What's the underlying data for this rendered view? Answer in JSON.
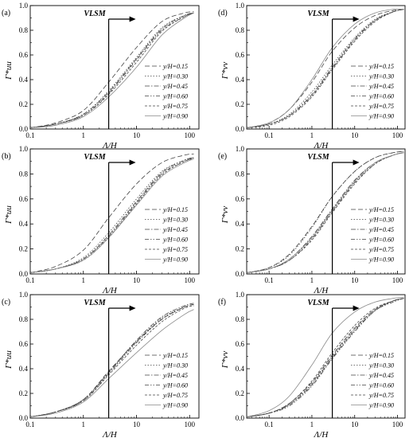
{
  "chart_data": [
    {
      "panel": "(a)",
      "type": "line",
      "xscale": "log",
      "xlim": [
        0.1,
        150
      ],
      "ylim": [
        0,
        1.0
      ],
      "xlabel": "Λ/H",
      "ylabel": "Γ*uu",
      "xticks": [
        "0.1",
        "1",
        "10",
        "100"
      ],
      "yticks": [
        "0.0",
        "0.2",
        "0.4",
        "0.6",
        "0.8",
        "1.0"
      ],
      "annotation": "VLSM",
      "annotation_x": 3,
      "legend_position": "right-middle",
      "series": [
        {
          "name": "y/H=0.15",
          "style": "dash",
          "x": [
            0.1,
            0.3,
            1,
            3,
            10,
            30,
            80,
            120
          ],
          "y": [
            0.01,
            0.05,
            0.15,
            0.38,
            0.66,
            0.87,
            0.94,
            0.95
          ]
        },
        {
          "name": "y/H=0.30",
          "style": "dot",
          "x": [
            0.1,
            0.3,
            1,
            3,
            10,
            30,
            80,
            120
          ],
          "y": [
            0.01,
            0.04,
            0.12,
            0.31,
            0.58,
            0.82,
            0.92,
            0.94
          ]
        },
        {
          "name": "y/H=0.45",
          "style": "dashdot",
          "x": [
            0.1,
            0.3,
            1,
            3,
            10,
            30,
            80,
            120
          ],
          "y": [
            0.01,
            0.04,
            0.12,
            0.3,
            0.57,
            0.81,
            0.92,
            0.94
          ]
        },
        {
          "name": "y/H=0.60",
          "style": "dashdotdot",
          "x": [
            0.1,
            0.3,
            1,
            3,
            10,
            30,
            80,
            120
          ],
          "y": [
            0.01,
            0.04,
            0.11,
            0.29,
            0.56,
            0.8,
            0.91,
            0.94
          ]
        },
        {
          "name": "y/H=0.75",
          "style": "shortdash",
          "x": [
            0.1,
            0.3,
            1,
            3,
            10,
            30,
            80,
            120
          ],
          "y": [
            0.01,
            0.04,
            0.11,
            0.28,
            0.54,
            0.79,
            0.91,
            0.94
          ]
        },
        {
          "name": "y/H=0.90",
          "style": "solid",
          "x": [
            0.1,
            0.3,
            1,
            3,
            10,
            30,
            80,
            120
          ],
          "y": [
            0.01,
            0.03,
            0.1,
            0.26,
            0.5,
            0.76,
            0.9,
            0.94
          ]
        }
      ]
    },
    {
      "panel": "(b)",
      "type": "line",
      "xscale": "log",
      "xlim": [
        0.1,
        150
      ],
      "ylim": [
        0,
        1.0
      ],
      "xlabel": "Λ/H",
      "ylabel": "Γ*uu",
      "xticks": [
        "0.1",
        "1",
        "10",
        "100"
      ],
      "yticks": [
        "0.0",
        "0.2",
        "0.4",
        "0.6",
        "0.8",
        "1.0"
      ],
      "annotation": "VLSM",
      "annotation_x": 3,
      "legend_position": "right-middle",
      "series": [
        {
          "name": "y/H=0.15",
          "style": "dash",
          "x": [
            0.1,
            0.3,
            1,
            3,
            10,
            30,
            80,
            120
          ],
          "y": [
            0.01,
            0.06,
            0.19,
            0.45,
            0.72,
            0.89,
            0.95,
            0.96
          ]
        },
        {
          "name": "y/H=0.30",
          "style": "dot",
          "x": [
            0.1,
            0.3,
            1,
            3,
            10,
            30,
            80,
            120
          ],
          "y": [
            0.01,
            0.04,
            0.13,
            0.33,
            0.6,
            0.82,
            0.91,
            0.93
          ]
        },
        {
          "name": "y/H=0.45",
          "style": "dashdot",
          "x": [
            0.1,
            0.3,
            1,
            3,
            10,
            30,
            80,
            120
          ],
          "y": [
            0.01,
            0.04,
            0.12,
            0.31,
            0.58,
            0.81,
            0.91,
            0.93
          ]
        },
        {
          "name": "y/H=0.60",
          "style": "dashdotdot",
          "x": [
            0.1,
            0.3,
            1,
            3,
            10,
            30,
            80,
            120
          ],
          "y": [
            0.01,
            0.04,
            0.12,
            0.3,
            0.57,
            0.8,
            0.9,
            0.93
          ]
        },
        {
          "name": "y/H=0.75",
          "style": "shortdash",
          "x": [
            0.1,
            0.3,
            1,
            3,
            10,
            30,
            80,
            120
          ],
          "y": [
            0.01,
            0.04,
            0.11,
            0.29,
            0.56,
            0.79,
            0.9,
            0.92
          ]
        },
        {
          "name": "y/H=0.90",
          "style": "solid",
          "x": [
            0.1,
            0.3,
            1,
            3,
            10,
            30,
            80,
            120
          ],
          "y": [
            0.01,
            0.04,
            0.11,
            0.29,
            0.55,
            0.78,
            0.89,
            0.92
          ]
        }
      ]
    },
    {
      "panel": "(c)",
      "type": "line",
      "xscale": "log",
      "xlim": [
        0.1,
        150
      ],
      "ylim": [
        0,
        1.0
      ],
      "xlabel": "Λ/H",
      "ylabel": "Γ*uu",
      "xticks": [
        "0.1",
        "1",
        "10",
        "100"
      ],
      "yticks": [
        "0.0",
        "0.2",
        "0.4",
        "0.6",
        "0.8",
        "1.0"
      ],
      "annotation": "VLSM",
      "annotation_x": 3,
      "legend_position": "right-middle",
      "series": [
        {
          "name": "y/H=0.15",
          "style": "dash",
          "x": [
            0.1,
            0.3,
            1,
            3,
            10,
            30,
            80,
            120
          ],
          "y": [
            0.01,
            0.05,
            0.15,
            0.38,
            0.62,
            0.8,
            0.9,
            0.92
          ]
        },
        {
          "name": "y/H=0.30",
          "style": "dot",
          "x": [
            0.1,
            0.3,
            1,
            3,
            10,
            30,
            80,
            120
          ],
          "y": [
            0.01,
            0.05,
            0.15,
            0.37,
            0.62,
            0.81,
            0.9,
            0.92
          ]
        },
        {
          "name": "y/H=0.45",
          "style": "dashdot",
          "x": [
            0.1,
            0.3,
            1,
            3,
            10,
            30,
            80,
            120
          ],
          "y": [
            0.01,
            0.05,
            0.15,
            0.37,
            0.63,
            0.82,
            0.91,
            0.93
          ]
        },
        {
          "name": "y/H=0.60",
          "style": "dashdotdot",
          "x": [
            0.1,
            0.3,
            1,
            3,
            10,
            30,
            80,
            120
          ],
          "y": [
            0.01,
            0.05,
            0.14,
            0.36,
            0.61,
            0.8,
            0.9,
            0.92
          ]
        },
        {
          "name": "y/H=0.75",
          "style": "shortdash",
          "x": [
            0.1,
            0.3,
            1,
            3,
            10,
            30,
            80,
            120
          ],
          "y": [
            0.01,
            0.05,
            0.14,
            0.35,
            0.59,
            0.78,
            0.89,
            0.91
          ]
        },
        {
          "name": "y/H=0.90",
          "style": "solid",
          "x": [
            0.1,
            0.3,
            1,
            3,
            10,
            30,
            80,
            120
          ],
          "y": [
            0.01,
            0.04,
            0.13,
            0.32,
            0.53,
            0.71,
            0.84,
            0.88
          ]
        }
      ]
    },
    {
      "panel": "(d)",
      "type": "line",
      "xscale": "log",
      "xlim": [
        0.03,
        150
      ],
      "ylim": [
        0,
        1.0
      ],
      "xlabel": "Λ/H",
      "ylabel": "Γ*vv",
      "xticks": [
        "0.1",
        "1",
        "10",
        "100"
      ],
      "yticks": [
        "0.0",
        "0.2",
        "0.4",
        "0.6",
        "0.8",
        "1.0"
      ],
      "annotation": "VLSM",
      "annotation_x": 3,
      "legend_position": "right-middle",
      "series": [
        {
          "name": "y/H=0.15",
          "style": "dash",
          "x": [
            0.03,
            0.1,
            0.3,
            1,
            3,
            10,
            30,
            80,
            140
          ],
          "y": [
            0.01,
            0.05,
            0.16,
            0.38,
            0.63,
            0.82,
            0.92,
            0.96,
            0.97
          ]
        },
        {
          "name": "y/H=0.30",
          "style": "dot",
          "x": [
            0.03,
            0.1,
            0.3,
            1,
            3,
            10,
            30,
            80,
            140
          ],
          "y": [
            0.01,
            0.04,
            0.12,
            0.3,
            0.52,
            0.74,
            0.89,
            0.95,
            0.97
          ]
        },
        {
          "name": "y/H=0.45",
          "style": "dashdot",
          "x": [
            0.03,
            0.1,
            0.3,
            1,
            3,
            10,
            30,
            80,
            140
          ],
          "y": [
            0.01,
            0.04,
            0.11,
            0.28,
            0.5,
            0.73,
            0.88,
            0.95,
            0.97
          ]
        },
        {
          "name": "y/H=0.60",
          "style": "dashdotdot",
          "x": [
            0.03,
            0.1,
            0.3,
            1,
            3,
            10,
            30,
            80,
            140
          ],
          "y": [
            0.01,
            0.04,
            0.11,
            0.27,
            0.49,
            0.72,
            0.88,
            0.95,
            0.97
          ]
        },
        {
          "name": "y/H=0.75",
          "style": "shortdash",
          "x": [
            0.03,
            0.1,
            0.3,
            1,
            3,
            10,
            30,
            80,
            140
          ],
          "y": [
            0.01,
            0.03,
            0.1,
            0.26,
            0.48,
            0.71,
            0.87,
            0.95,
            0.97
          ]
        },
        {
          "name": "y/H=0.90",
          "style": "solid",
          "x": [
            0.03,
            0.1,
            0.3,
            1,
            3,
            10,
            30,
            80,
            140
          ],
          "y": [
            0.01,
            0.05,
            0.16,
            0.4,
            0.66,
            0.85,
            0.94,
            0.97,
            0.97
          ]
        }
      ]
    },
    {
      "panel": "(e)",
      "type": "line",
      "xscale": "log",
      "xlim": [
        0.03,
        150
      ],
      "ylim": [
        0,
        1.0
      ],
      "xlabel": "Λ/H",
      "ylabel": "Γ*vv",
      "xticks": [
        "0.1",
        "1",
        "10",
        "100"
      ],
      "yticks": [
        "0.0",
        "0.2",
        "0.4",
        "0.6",
        "0.8",
        "1.0"
      ],
      "annotation": "VLSM",
      "annotation_x": 3,
      "legend_position": "right-middle",
      "series": [
        {
          "name": "y/H=0.15",
          "style": "dash",
          "x": [
            0.03,
            0.1,
            0.3,
            1,
            3,
            10,
            30,
            80,
            140
          ],
          "y": [
            0.01,
            0.05,
            0.16,
            0.38,
            0.62,
            0.82,
            0.93,
            0.97,
            0.98
          ]
        },
        {
          "name": "y/H=0.30",
          "style": "dot",
          "x": [
            0.03,
            0.1,
            0.3,
            1,
            3,
            10,
            30,
            80,
            140
          ],
          "y": [
            0.01,
            0.05,
            0.15,
            0.37,
            0.62,
            0.82,
            0.93,
            0.97,
            0.98
          ]
        },
        {
          "name": "y/H=0.45",
          "style": "dashdot",
          "x": [
            0.03,
            0.1,
            0.3,
            1,
            3,
            10,
            30,
            80,
            140
          ],
          "y": [
            0.01,
            0.04,
            0.12,
            0.3,
            0.52,
            0.75,
            0.89,
            0.95,
            0.97
          ]
        },
        {
          "name": "y/H=0.60",
          "style": "dashdotdot",
          "x": [
            0.03,
            0.1,
            0.3,
            1,
            3,
            10,
            30,
            80,
            140
          ],
          "y": [
            0.01,
            0.04,
            0.11,
            0.28,
            0.5,
            0.73,
            0.88,
            0.95,
            0.97
          ]
        },
        {
          "name": "y/H=0.75",
          "style": "shortdash",
          "x": [
            0.03,
            0.1,
            0.3,
            1,
            3,
            10,
            30,
            80,
            140
          ],
          "y": [
            0.01,
            0.04,
            0.11,
            0.27,
            0.49,
            0.72,
            0.88,
            0.95,
            0.97
          ]
        },
        {
          "name": "y/H=0.90",
          "style": "solid",
          "x": [
            0.03,
            0.1,
            0.3,
            1,
            3,
            10,
            30,
            80,
            140
          ],
          "y": [
            0.01,
            0.04,
            0.12,
            0.29,
            0.51,
            0.74,
            0.89,
            0.95,
            0.97
          ]
        }
      ]
    },
    {
      "panel": "(f)",
      "type": "line",
      "xscale": "log",
      "xlim": [
        0.03,
        150
      ],
      "ylim": [
        0,
        1.0
      ],
      "xlabel": "Λ/H",
      "ylabel": "Γ*vv",
      "xticks": [
        "0.1",
        "1",
        "10",
        "100"
      ],
      "yticks": [
        "0.0",
        "0.2",
        "0.4",
        "0.6",
        "0.8",
        "1.0"
      ],
      "annotation": "VLSM",
      "annotation_x": 3,
      "legend_position": "right-middle",
      "series": [
        {
          "name": "y/H=0.15",
          "style": "dash",
          "x": [
            0.03,
            0.1,
            0.3,
            1,
            3,
            10,
            30,
            80,
            140
          ],
          "y": [
            0.01,
            0.04,
            0.12,
            0.29,
            0.51,
            0.73,
            0.88,
            0.95,
            0.97
          ]
        },
        {
          "name": "y/H=0.30",
          "style": "dot",
          "x": [
            0.03,
            0.1,
            0.3,
            1,
            3,
            10,
            30,
            80,
            140
          ],
          "y": [
            0.01,
            0.04,
            0.11,
            0.28,
            0.5,
            0.72,
            0.88,
            0.95,
            0.97
          ]
        },
        {
          "name": "y/H=0.45",
          "style": "dashdot",
          "x": [
            0.03,
            0.1,
            0.3,
            1,
            3,
            10,
            30,
            80,
            140
          ],
          "y": [
            0.01,
            0.04,
            0.11,
            0.27,
            0.49,
            0.71,
            0.87,
            0.95,
            0.97
          ]
        },
        {
          "name": "y/H=0.60",
          "style": "dashdotdot",
          "x": [
            0.03,
            0.1,
            0.3,
            1,
            3,
            10,
            30,
            80,
            140
          ],
          "y": [
            0.01,
            0.04,
            0.1,
            0.26,
            0.48,
            0.7,
            0.87,
            0.94,
            0.97
          ]
        },
        {
          "name": "y/H=0.75",
          "style": "shortdash",
          "x": [
            0.03,
            0.1,
            0.3,
            1,
            3,
            10,
            30,
            80,
            140
          ],
          "y": [
            0.01,
            0.04,
            0.12,
            0.3,
            0.53,
            0.75,
            0.89,
            0.95,
            0.97
          ]
        },
        {
          "name": "y/H=0.90",
          "style": "solid",
          "x": [
            0.03,
            0.1,
            0.3,
            1,
            3,
            10,
            30,
            80,
            140
          ],
          "y": [
            0.01,
            0.06,
            0.18,
            0.43,
            0.69,
            0.86,
            0.94,
            0.97,
            0.98
          ]
        }
      ]
    }
  ]
}
